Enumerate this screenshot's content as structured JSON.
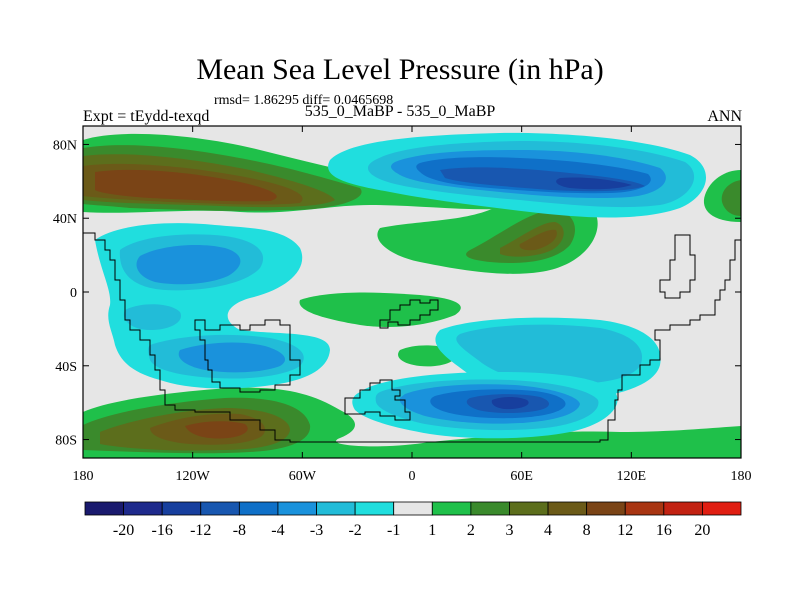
{
  "chart_data": {
    "type": "heatmap",
    "title": "Mean Sea Level Pressure (in hPa)",
    "stats": "rmsd= 1.86295 diff= 0.0465698",
    "left_label": "Expt = tEydd-texqd",
    "center_label": "535_0_MaBP - 535_0_MaBP",
    "right_label": "ANN",
    "xaxis": {
      "range": [
        -180,
        180
      ],
      "ticks": [
        -180,
        -120,
        -60,
        0,
        60,
        120,
        180
      ],
      "tick_labels": [
        "180",
        "120W",
        "60W",
        "0",
        "60E",
        "120E",
        "180"
      ]
    },
    "yaxis": {
      "range": [
        -90,
        90
      ],
      "ticks": [
        80,
        40,
        0,
        -40,
        -80
      ],
      "tick_labels": [
        "80N",
        "40N",
        "0",
        "40S",
        "80S"
      ]
    },
    "colorbar": {
      "levels": [
        "-20",
        "-16",
        "-12",
        "-8",
        "-4",
        "-3",
        "-2",
        "-1",
        "1",
        "2",
        "3",
        "4",
        "8",
        "12",
        "16",
        "20"
      ],
      "colors": [
        "#1a1a6e",
        "#1e2a8c",
        "#173f9e",
        "#1857b0",
        "#0f70c8",
        "#1a92dc",
        "#22bcd8",
        "#20dede",
        "#e6e6e6",
        "#1fc04a",
        "#3a8a2c",
        "#5c6e1c",
        "#6b5a18",
        "#7a4416",
        "#a83512",
        "#c22212",
        "#e01e12"
      ]
    },
    "features": [
      {
        "label": "northwest high",
        "lon": [
          -180,
          -95
        ],
        "lat": [
          45,
          80
        ],
        "level_index": 11
      },
      {
        "label": "north high core",
        "lon": [
          -170,
          -110
        ],
        "lat": [
          52,
          68
        ],
        "level_index": 13
      },
      {
        "label": "north low",
        "lon": [
          -15,
          155
        ],
        "lat": [
          35,
          85
        ],
        "level_index": 3
      },
      {
        "label": "southwest high",
        "lon": [
          -170,
          -50
        ],
        "lat": [
          -90,
          -60
        ],
        "level_index": 11
      },
      {
        "label": "south-central low",
        "lon": [
          -45,
          105
        ],
        "lat": [
          -75,
          -35
        ],
        "level_index": 3
      },
      {
        "label": "southwest low",
        "lon": [
          -170,
          -90
        ],
        "lat": [
          -75,
          -5
        ],
        "level_index": 6
      },
      {
        "label": "tropical-east low",
        "lon": [
          10,
          130
        ],
        "lat": [
          -50,
          -10
        ],
        "level_index": 5
      },
      {
        "label": "western low",
        "lon": [
          -145,
          -85
        ],
        "lat": [
          5,
          35
        ],
        "level_index": 6
      }
    ]
  }
}
